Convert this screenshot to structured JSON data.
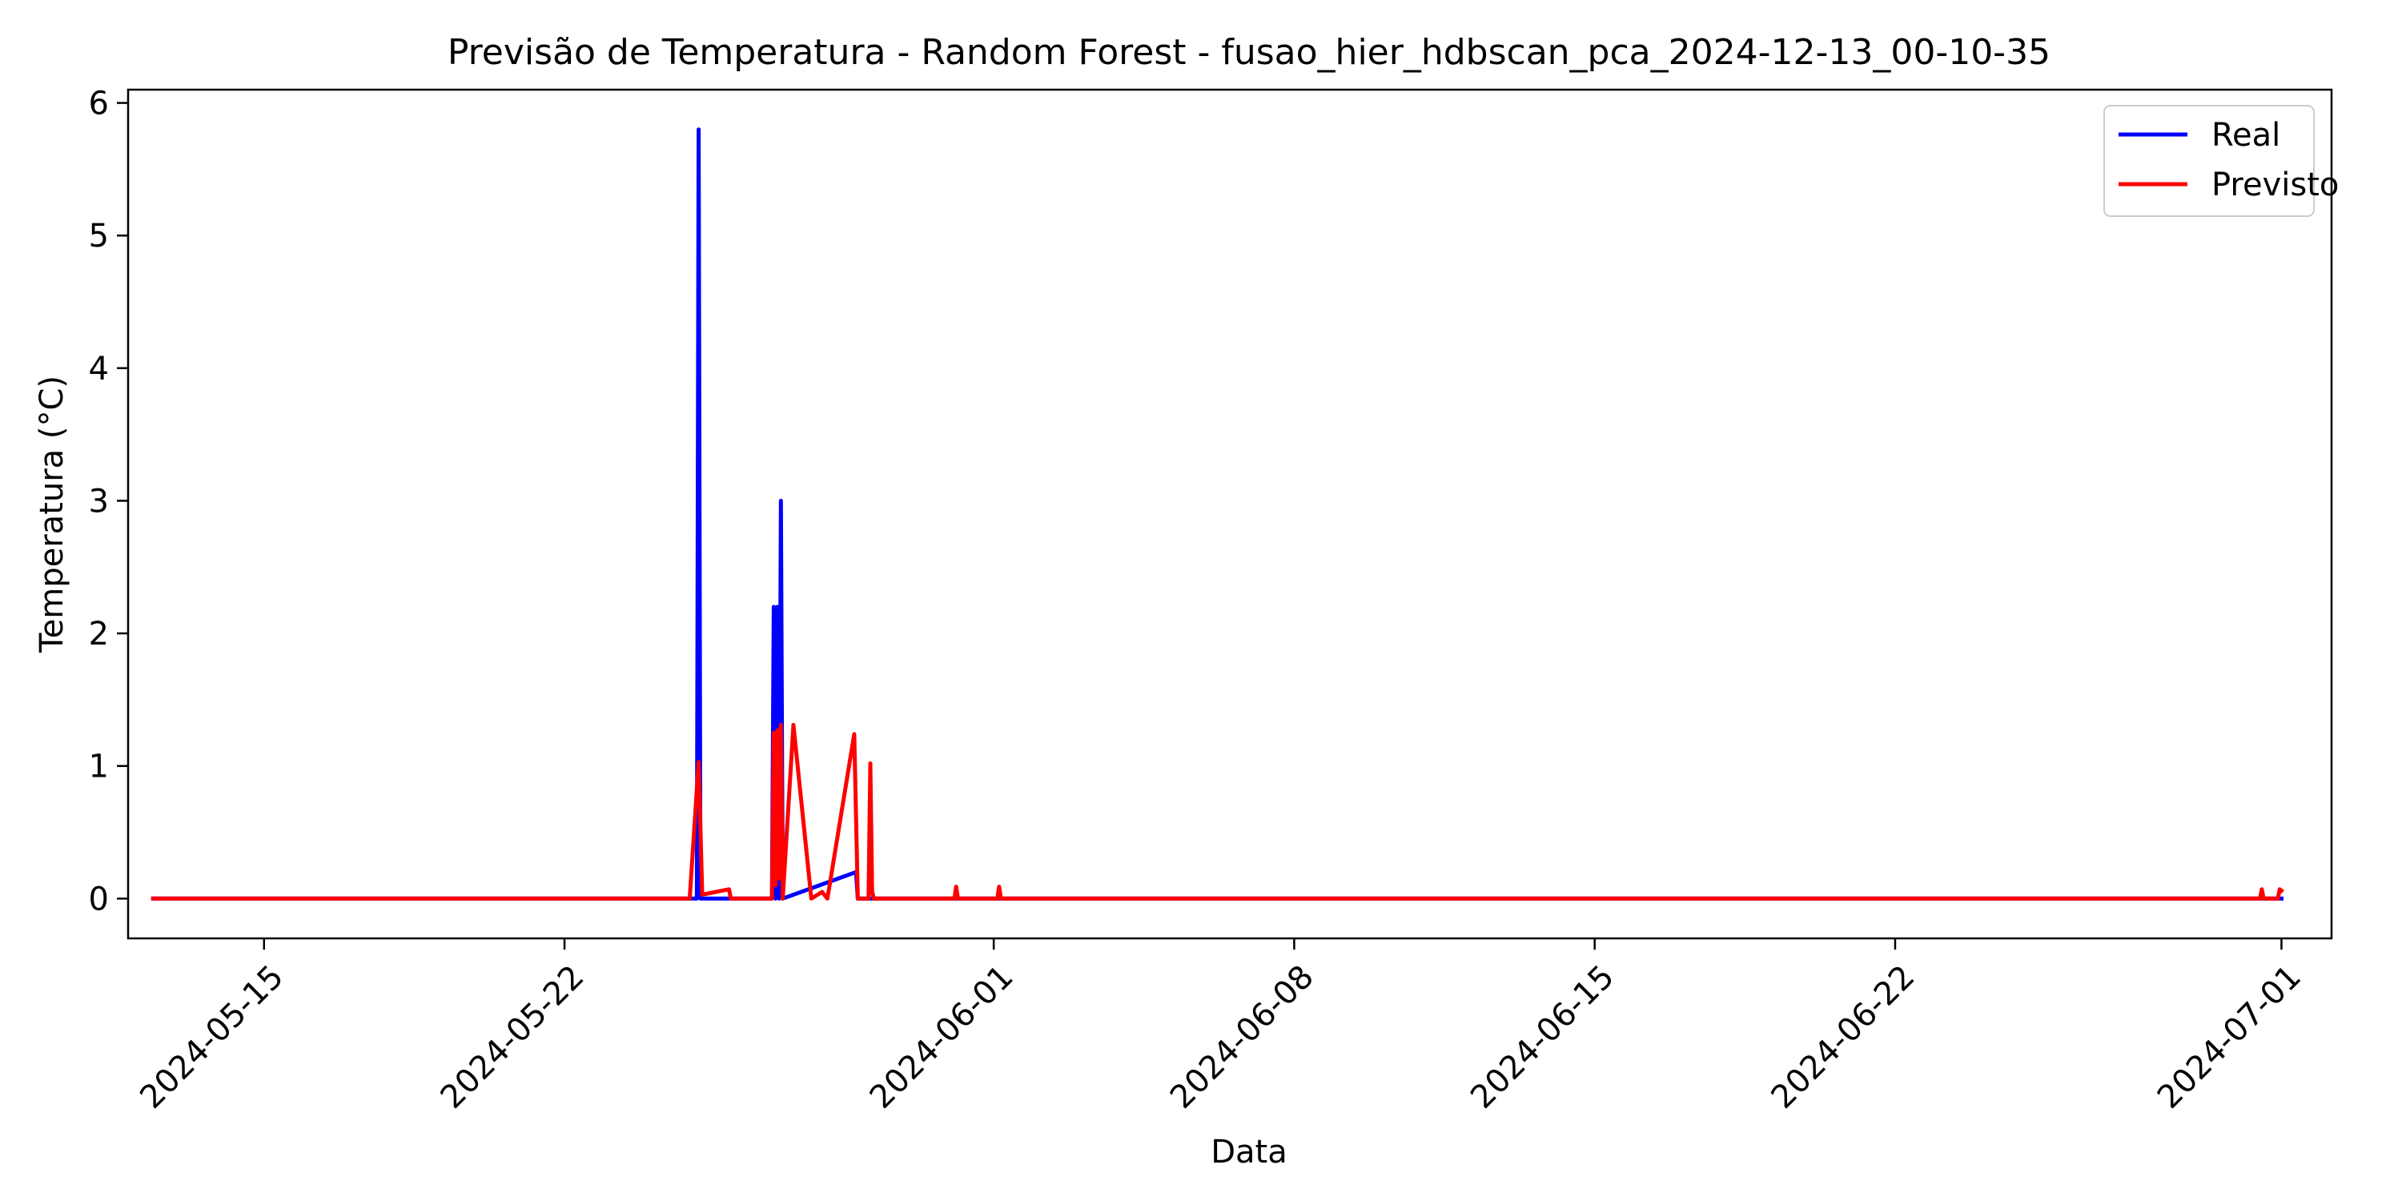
{
  "chart_data": {
    "type": "line",
    "title": "Previsão de Temperatura - Random Forest - fusao_hier_hdbscan_pca_2024-12-13_00-10-35",
    "xlabel": "Data",
    "ylabel": "Temperatura (°C)",
    "x_axis_type": "date",
    "xlim": [
      "2024-05-11T20:00",
      "2024-07-02T04:00"
    ],
    "ylim": [
      -0.3,
      6.1
    ],
    "x_ticks": [
      "2024-05-15",
      "2024-05-22",
      "2024-06-01",
      "2024-06-08",
      "2024-06-15",
      "2024-06-22",
      "2024-07-01"
    ],
    "y_ticks": [
      0,
      1,
      2,
      3,
      4,
      5,
      6
    ],
    "grid": false,
    "legend_position": "upper right",
    "series": [
      {
        "name": "Real",
        "color": "#0000ff",
        "points": [
          [
            "2024-05-12T10:00",
            0
          ],
          [
            "2024-05-24T22:00",
            0
          ],
          [
            "2024-05-25T02:00",
            0
          ],
          [
            "2024-05-25T03:00",
            5.8
          ],
          [
            "2024-05-25T04:00",
            0
          ],
          [
            "2024-05-26T20:00",
            0
          ],
          [
            "2024-05-26T21:00",
            2.2
          ],
          [
            "2024-05-26T22:00",
            0
          ],
          [
            "2024-05-26T23:00",
            2.2
          ],
          [
            "2024-05-27T00:00",
            0
          ],
          [
            "2024-05-27T01:00",
            3.0
          ],
          [
            "2024-05-27T02:00",
            0
          ],
          [
            "2024-05-28T19:00",
            0.2
          ],
          [
            "2024-05-28T20:00",
            0
          ],
          [
            "2024-06-30T20:00",
            0
          ],
          [
            "2024-07-01T00:00",
            0
          ]
        ]
      },
      {
        "name": "Previsto",
        "color": "#ff0000",
        "points": [
          [
            "2024-05-12T10:00",
            0
          ],
          [
            "2024-05-24T22:00",
            0
          ],
          [
            "2024-05-25T03:00",
            1.03
          ],
          [
            "2024-05-25T05:00",
            0.03
          ],
          [
            "2024-05-25T20:00",
            0.07
          ],
          [
            "2024-05-25T21:00",
            0
          ],
          [
            "2024-05-26T20:00",
            0
          ],
          [
            "2024-05-26T21:00",
            1.25
          ],
          [
            "2024-05-26T22:00",
            0.1
          ],
          [
            "2024-05-26T23:00",
            1.27
          ],
          [
            "2024-05-27T00:00",
            0.15
          ],
          [
            "2024-05-27T01:00",
            1.31
          ],
          [
            "2024-05-27T02:00",
            0
          ],
          [
            "2024-05-27T08:00",
            1.31
          ],
          [
            "2024-05-27T18:00",
            0
          ],
          [
            "2024-05-28T00:00",
            0.05
          ],
          [
            "2024-05-28T03:00",
            0
          ],
          [
            "2024-05-28T18:00",
            1.24
          ],
          [
            "2024-05-28T20:00",
            0
          ],
          [
            "2024-05-29T02:00",
            0
          ],
          [
            "2024-05-29T03:00",
            1.02
          ],
          [
            "2024-05-29T04:00",
            0.05
          ],
          [
            "2024-05-29T05:00",
            0
          ],
          [
            "2024-05-31T02:00",
            0
          ],
          [
            "2024-05-31T03:00",
            0.09
          ],
          [
            "2024-05-31T04:00",
            0
          ],
          [
            "2024-06-01T02:00",
            0
          ],
          [
            "2024-06-01T03:00",
            0.09
          ],
          [
            "2024-06-01T04:00",
            0
          ],
          [
            "2024-06-30T12:00",
            0
          ],
          [
            "2024-06-30T13:00",
            0.07
          ],
          [
            "2024-06-30T14:00",
            0
          ],
          [
            "2024-06-30T22:00",
            0
          ],
          [
            "2024-06-30T23:00",
            0.07
          ],
          [
            "2024-07-01T00:00",
            0.06
          ]
        ]
      }
    ]
  }
}
